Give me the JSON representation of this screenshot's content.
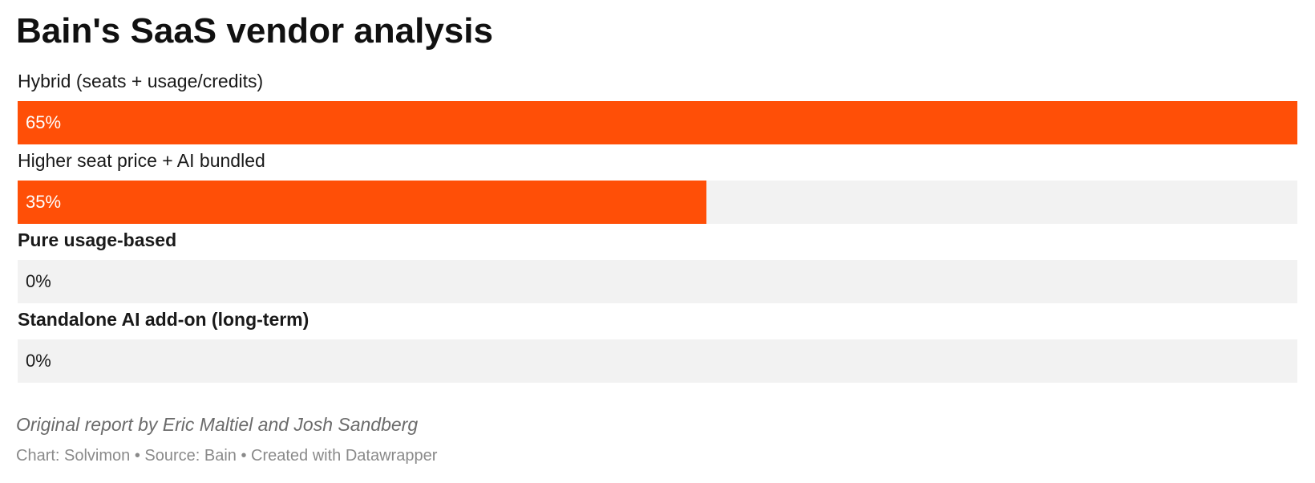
{
  "chart_data": {
    "type": "bar",
    "title": "Bain's SaaS vendor analysis",
    "orientation": "horizontal",
    "categories": [
      "Hybrid (seats + usage/credits)",
      "Higher seat price + AI bundled",
      "Pure usage-based",
      "Standalone AI add-on (long-term)"
    ],
    "values": [
      65,
      35,
      0,
      0
    ],
    "value_labels": [
      "65%",
      "35%",
      "0%",
      "0%"
    ],
    "label_bold": [
      false,
      false,
      true,
      true
    ],
    "unit": "%",
    "xlim": [
      0,
      65
    ],
    "xlabel": "",
    "ylabel": "",
    "grid": false,
    "legend": "none",
    "colors": {
      "bar": "#ff4f07",
      "track": "#f2f2f2"
    }
  },
  "notes": "Original report by Eric Maltiel and Josh Sandberg",
  "footer": "Chart: Solvimon • Source: Bain • Created with Datawrapper"
}
